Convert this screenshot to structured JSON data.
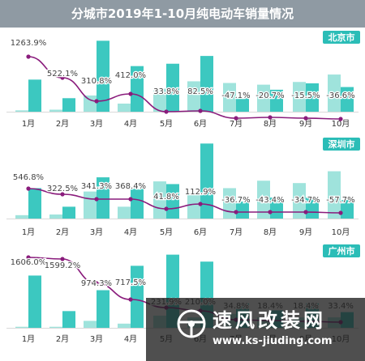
{
  "title": "分城市2019年1-10月纯电动车销量情况",
  "colors": {
    "title_bar": "#8f9aa3",
    "bar_light": "#9fe3dc",
    "bar_dark": "#3cc8c0",
    "growth_line": "#8a1c7c",
    "city_tag": "#2bbdb7"
  },
  "watermark": {
    "brand": "速风改装网",
    "url": "www.ks-jiuding.com"
  },
  "chart_data": [
    {
      "type": "bar",
      "city": "北京市",
      "categories": [
        "1月",
        "2月",
        "3月",
        "4月",
        "5月",
        "6月",
        "7月",
        "8月",
        "9月",
        "10月"
      ],
      "series": [
        {
          "values": [
            4,
            6,
            48,
            24,
            68,
            90,
            85,
            80,
            88,
            110
          ]
        },
        {
          "values": [
            95,
            40,
            210,
            135,
            142,
            165,
            40,
            65,
            84,
            73
          ]
        }
      ],
      "growth": [
        1263.9,
        522.1,
        310.8,
        412.0,
        33.8,
        82.5,
        -47.1,
        -20.7,
        -15.5,
        -36.6
      ],
      "growth_labels": [
        "1263.9%",
        "522.1%",
        "310.8%",
        "412.0%",
        "33.8%",
        "82.5%",
        "-47.1%",
        "-20.7%",
        "-15.5%",
        "-36.6%"
      ]
    },
    {
      "type": "bar",
      "city": "深圳市",
      "categories": [
        "1月",
        "2月",
        "3月",
        "4月",
        "5月",
        "6月",
        "7月",
        "8月",
        "9月",
        "10月"
      ],
      "series": [
        {
          "values": [
            10,
            12,
            80,
            35,
            110,
            75,
            90,
            112,
            105,
            140
          ]
        },
        {
          "values": [
            90,
            35,
            122,
            88,
            102,
            222,
            50,
            62,
            62,
            55
          ]
        }
      ],
      "growth": [
        546.8,
        322.5,
        341.3,
        368.4,
        41.8,
        112.9,
        -36.7,
        -43.4,
        -34.7,
        -57.7
      ],
      "growth_labels": [
        "546.8%",
        "322.5%",
        "341.3%",
        "368.4%",
        "41.8%",
        "112.9%",
        "-36.7%",
        "-43.4%",
        "-34.7%",
        "-57.7%"
      ]
    },
    {
      "type": "bar",
      "city": "广州市",
      "categories": [
        "1月",
        "2月",
        "3月",
        "4月",
        "5月",
        "6月",
        "7月",
        "8月",
        "9月",
        "10月"
      ],
      "series": [
        {
          "values": [
            3,
            3,
            20,
            12,
            35,
            30,
            40,
            30,
            30,
            30
          ]
        },
        {
          "values": [
            150,
            48,
            108,
            178,
            210,
            190,
            70,
            50,
            70,
            45
          ]
        }
      ],
      "growth": [
        1606.0,
        1599.2,
        974.3,
        717.5,
        231.9,
        210.0,
        34.8,
        18.4,
        18.4,
        33.4
      ],
      "growth_labels": [
        "1606.0%",
        "1599.2%",
        "974.3%",
        "717.5%",
        "231.9%",
        "210.0%",
        "34.8%",
        "18.4%",
        "18.4%",
        "33.4%"
      ]
    }
  ]
}
